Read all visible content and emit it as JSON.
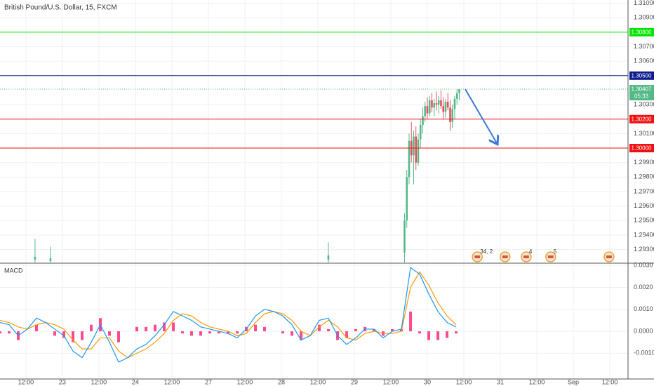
{
  "chart_data": {
    "type": "candlestick",
    "title": "British Pound/U.S. Dollar, 15, FXCM",
    "xlim": [
      -0.71,
      16.5
    ],
    "xticks": [
      {
        "value": 0,
        "label": "12:00"
      },
      {
        "value": 1,
        "label": "23"
      },
      {
        "value": 2,
        "label": "12:00"
      },
      {
        "value": 3,
        "label": "24"
      },
      {
        "value": 4,
        "label": "12:00"
      },
      {
        "value": 5,
        "label": "27"
      },
      {
        "value": 6,
        "label": "12:00"
      },
      {
        "value": 7,
        "label": "28"
      },
      {
        "value": 8,
        "label": "12:00"
      },
      {
        "value": 9,
        "label": "29"
      },
      {
        "value": 10,
        "label": "12:00"
      },
      {
        "value": 11,
        "label": "30"
      },
      {
        "value": 12,
        "label": "12:00"
      },
      {
        "value": 13,
        "label": "31"
      },
      {
        "value": 14,
        "label": "12:00"
      },
      {
        "value": 15,
        "label": "Sep"
      },
      {
        "value": 16,
        "label": "12:00"
      }
    ],
    "price_pane": {
      "ylim": [
        1.29206,
        1.31022
      ],
      "yticks": [
        {
          "value": 1.31,
          "label": "1.31000"
        },
        {
          "value": 1.309,
          "label": "1.30900"
        },
        {
          "value": 1.307,
          "label": "1.30700"
        },
        {
          "value": 1.306,
          "label": "1.30600"
        },
        {
          "value": 1.303,
          "label": "1.30300"
        },
        {
          "value": 1.301,
          "label": "1.30100"
        },
        {
          "value": 1.299,
          "label": "1.29900"
        },
        {
          "value": 1.298,
          "label": "1.29800"
        },
        {
          "value": 1.297,
          "label": "1.29700"
        },
        {
          "value": 1.296,
          "label": "1.29600"
        },
        {
          "value": 1.295,
          "label": "1.29500"
        },
        {
          "value": 1.294,
          "label": "1.29400"
        },
        {
          "value": 1.293,
          "label": "1.29300"
        }
      ],
      "grid": true,
      "up_color": "#53b987",
      "down_color": "#eb4d5c",
      "candles": {
        "x": [
          0.25,
          0.673,
          8.288,
          10.375,
          10.4375,
          10.5,
          10.5625,
          10.625,
          10.6875,
          10.75,
          10.8125,
          10.875,
          10.9375,
          11,
          11.0625,
          11.125,
          11.1875,
          11.25,
          11.3125,
          11.375,
          11.4375,
          11.5,
          11.5625,
          11.625,
          11.6875,
          11.75,
          11.8125,
          11.875
        ],
        "open": [
          1.2923,
          1.2922,
          1.2923,
          1.2928,
          1.295,
          1.298,
          1.3005,
          1.2995,
          1.3008,
          1.299,
          1.3006,
          1.3016,
          1.3022,
          1.3029,
          1.3024,
          1.3033,
          1.3028,
          1.3031,
          1.303,
          1.3033,
          1.3029,
          1.3025,
          1.3032,
          1.3028,
          1.3018,
          1.3027,
          1.3034,
          1.3038
        ],
        "high": [
          1.29375,
          1.2932,
          1.2935,
          1.2955,
          1.2985,
          1.301,
          1.3018,
          1.3012,
          1.3015,
          1.301,
          1.302,
          1.3028,
          1.3032,
          1.3035,
          1.3036,
          1.3038,
          1.3034,
          1.3039,
          1.3036,
          1.304,
          1.3035,
          1.3034,
          1.3038,
          1.3033,
          1.303,
          1.3036,
          1.3041,
          1.30407
        ],
        "low": [
          1.2921,
          1.2921,
          1.2921,
          1.2921,
          1.2945,
          1.2975,
          1.299,
          1.2975,
          1.2985,
          1.2988,
          1.3,
          1.301,
          1.3018,
          1.302,
          1.3022,
          1.3025,
          1.3022,
          1.3026,
          1.3024,
          1.3027,
          1.302,
          1.3021,
          1.3026,
          1.3012,
          1.3014,
          1.302,
          1.303,
          1.3033
        ],
        "close": [
          1.2925,
          1.2924,
          1.2926,
          1.295,
          1.298,
          1.3005,
          1.2995,
          1.3008,
          1.299,
          1.3006,
          1.3016,
          1.3022,
          1.3029,
          1.3024,
          1.3033,
          1.3028,
          1.3031,
          1.303,
          1.3033,
          1.3029,
          1.3025,
          1.3032,
          1.3028,
          1.3018,
          1.3027,
          1.3034,
          1.3038,
          1.30407
        ]
      },
      "levels": [
        {
          "value": 1.308,
          "label": "1.30800",
          "color": "#00e600"
        },
        {
          "value": 1.305,
          "label": "1.30500",
          "color": "#0d1b8c"
        },
        {
          "value": 1.302,
          "label": "1.30200",
          "color": "#f01010"
        },
        {
          "value": 1.3,
          "label": "1.30000",
          "color": "#f01010"
        }
      ],
      "last_price": {
        "value": 1.30407,
        "label": "1.30407",
        "countdown": "05:33",
        "color": "#53b987"
      },
      "events": {
        "x": [
          12.37,
          13.13,
          13.71,
          14.38,
          15.98
        ],
        "labels": [
          "34, 2",
          null,
          "4",
          "5",
          null
        ]
      }
    },
    "macd_pane": {
      "type": "macd",
      "title": "MACD",
      "ylim": [
        -0.00217,
        0.0031
      ],
      "yticks": [
        {
          "value": 0.003,
          "label": "0.0030"
        },
        {
          "value": 0.002,
          "label": "0.0020"
        },
        {
          "value": 0.001,
          "label": "0.0010"
        },
        {
          "value": 0,
          "label": "0.0000"
        },
        {
          "value": -0.001,
          "label": "-0.0010"
        }
      ],
      "x": [
        -0.71,
        -0.46,
        -0.21,
        0.04,
        0.29,
        0.54,
        0.79,
        1.04,
        1.29,
        1.54,
        1.79,
        2.04,
        2.29,
        2.54,
        2.79,
        3.04,
        3.29,
        3.54,
        3.79,
        4.04,
        4.29,
        4.54,
        4.79,
        5.04,
        5.29,
        5.54,
        5.79,
        6.04,
        6.29,
        6.54,
        6.79,
        7.04,
        7.29,
        7.54,
        7.79,
        8.04,
        8.29,
        8.54,
        8.79,
        9.04,
        9.29,
        9.54,
        9.79,
        10.04,
        10.29,
        10.54,
        10.79,
        11.04,
        11.29,
        11.54,
        11.79
      ],
      "macd": {
        "color": "#2196f3",
        "values": [
          0.0004,
          0.0003,
          -0.0002,
          0.0001,
          0.0006,
          0.0004,
          0.0001,
          -0.0002,
          -0.0009,
          -0.0012,
          -0.0005,
          0.0003,
          -0.0005,
          -0.0014,
          -0.0012,
          -0.0008,
          -0.0006,
          -0.0002,
          0.0003,
          0.0009,
          0.0007,
          0.0005,
          0.0002,
          0.0001,
          0.0,
          -0.0001,
          -0.0003,
          0.0001,
          0.0007,
          0.001,
          0.0009,
          0.0007,
          0.0003,
          -0.0004,
          -0.0002,
          0.0005,
          0.0006,
          -0.0002,
          -0.0006,
          -0.0003,
          0.0001,
          0.0001,
          -0.0003,
          0.0,
          0.0001,
          0.0029,
          0.0026,
          0.0017,
          0.0009,
          0.0004,
          0.0002
        ]
      },
      "signal": {
        "color": "#ff9800",
        "values": [
          0.0005,
          0.0004,
          0.0002,
          0.0001,
          0.0003,
          0.0004,
          0.0003,
          0.0001,
          -0.0004,
          -0.0008,
          -0.0008,
          -0.0003,
          -0.0003,
          -0.0009,
          -0.0012,
          -0.001,
          -0.0008,
          -0.0005,
          -0.0001,
          0.0005,
          0.0008,
          0.0007,
          0.0004,
          0.0002,
          0.0001,
          0.0,
          -0.0002,
          -0.0001,
          0.0004,
          0.0008,
          0.0009,
          0.0008,
          0.0005,
          0.0,
          -0.0002,
          0.0002,
          0.0005,
          0.0002,
          -0.0003,
          -0.0004,
          -0.0001,
          0.0,
          -0.0001,
          -0.0001,
          0.0,
          0.002,
          0.0027,
          0.0021,
          0.0013,
          0.0007,
          0.0003
        ]
      },
      "histogram": {
        "color": "#ff4a8d",
        "values": [
          -0.0001,
          -0.0001,
          -0.0004,
          0.0,
          0.0003,
          0.0,
          -0.0002,
          -0.0003,
          -0.0005,
          -0.0004,
          0.0003,
          0.0006,
          -0.0002,
          -0.0005,
          0.0,
          0.0002,
          0.0002,
          0.0003,
          0.0004,
          0.0004,
          -0.0001,
          -0.0002,
          -0.0002,
          -0.0001,
          -0.0001,
          -0.0001,
          -0.0001,
          0.0002,
          0.0003,
          0.0002,
          0.0,
          -0.0001,
          -0.0002,
          -0.0004,
          0.0,
          0.0003,
          0.0001,
          -0.0004,
          -0.0003,
          0.0001,
          0.0002,
          0.0001,
          -0.0002,
          0.0001,
          0.0001,
          0.0009,
          -0.0001,
          -0.0004,
          -0.0004,
          -0.0003,
          -0.0001
        ]
      }
    }
  }
}
